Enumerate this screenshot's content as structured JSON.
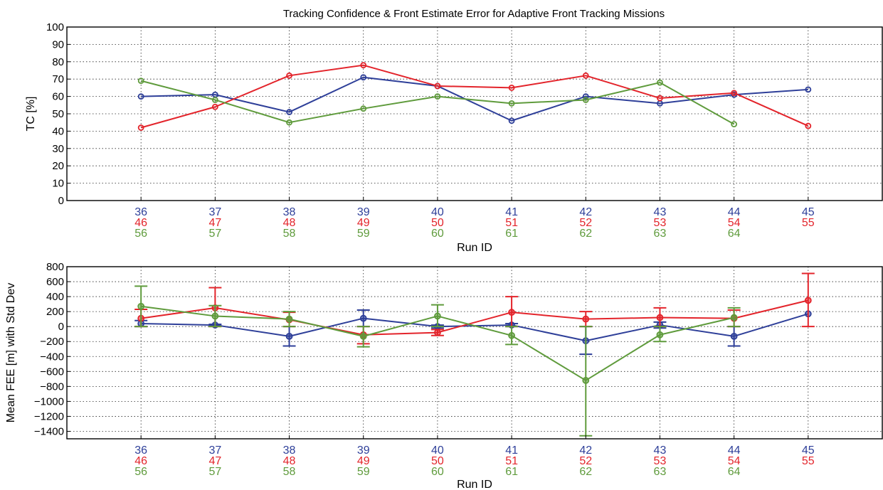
{
  "colors": {
    "blue": "#2e3f99",
    "red": "#e3242b",
    "green": "#5f9b3c"
  },
  "run_id_labels": [
    [
      "36",
      "46",
      "56"
    ],
    [
      "37",
      "47",
      "57"
    ],
    [
      "38",
      "48",
      "58"
    ],
    [
      "39",
      "49",
      "59"
    ],
    [
      "40",
      "50",
      "60"
    ],
    [
      "41",
      "51",
      "61"
    ],
    [
      "42",
      "52",
      "62"
    ],
    [
      "43",
      "53",
      "63"
    ],
    [
      "44",
      "54",
      "64"
    ],
    [
      "45",
      "55",
      ""
    ]
  ],
  "chart_data": [
    {
      "type": "line",
      "title": "Tracking Confidence & Front Estimate Error for Adaptive Front Tracking Missions",
      "xlabel": "Run ID",
      "ylabel": "TC [%]",
      "xlim": [
        0,
        11
      ],
      "ylim": [
        0,
        100
      ],
      "yticks": [
        0,
        10,
        20,
        30,
        40,
        50,
        60,
        70,
        80,
        90,
        100
      ],
      "grid": true,
      "x": [
        1,
        2,
        3,
        4,
        5,
        6,
        7,
        8,
        9,
        10
      ],
      "series": [
        {
          "color": "blue",
          "values": [
            60,
            61,
            51,
            71,
            66,
            46,
            60,
            56,
            61,
            64
          ]
        },
        {
          "color": "red",
          "values": [
            42,
            54,
            72,
            78,
            66,
            65,
            72,
            59,
            62,
            43
          ]
        },
        {
          "color": "green",
          "values": [
            69,
            58,
            45,
            53,
            60,
            56,
            58,
            68,
            44,
            null
          ]
        }
      ]
    },
    {
      "type": "line",
      "title": "",
      "xlabel": "Run ID",
      "ylabel": "Mean FEE [m] with Std Dev",
      "xlim": [
        0,
        11
      ],
      "ylim": [
        -1500,
        800
      ],
      "yticks": [
        -1400,
        -1200,
        -1000,
        -800,
        -600,
        -400,
        -200,
        0,
        200,
        400,
        600,
        800
      ],
      "grid": true,
      "x": [
        1,
        2,
        3,
        4,
        5,
        6,
        7,
        8,
        9,
        10
      ],
      "series": [
        {
          "color": "blue",
          "values": [
            40,
            20,
            -130,
            110,
            0,
            20,
            -190,
            20,
            -130,
            170
          ],
          "err_low": [
            0,
            10,
            -260,
            0,
            -20,
            0,
            -370,
            -20,
            -260,
            null
          ],
          "err_high": [
            80,
            30,
            0,
            220,
            20,
            40,
            0,
            60,
            0,
            null
          ]
        },
        {
          "color": "red",
          "values": [
            110,
            250,
            90,
            -110,
            -80,
            190,
            100,
            120,
            110,
            350
          ],
          "err_low": [
            0,
            0,
            0,
            -230,
            -120,
            0,
            0,
            0,
            0,
            0
          ],
          "err_high": [
            230,
            520,
            190,
            0,
            -40,
            400,
            200,
            250,
            220,
            710
          ]
        },
        {
          "color": "green",
          "values": [
            270,
            140,
            100,
            -130,
            140,
            -120,
            -720,
            -110,
            120,
            null
          ],
          "err_low": [
            0,
            0,
            0,
            -270,
            0,
            -240,
            -1460,
            -200,
            0,
            null
          ],
          "err_high": [
            540,
            280,
            200,
            0,
            290,
            0,
            0,
            0,
            250,
            null
          ]
        }
      ]
    }
  ]
}
